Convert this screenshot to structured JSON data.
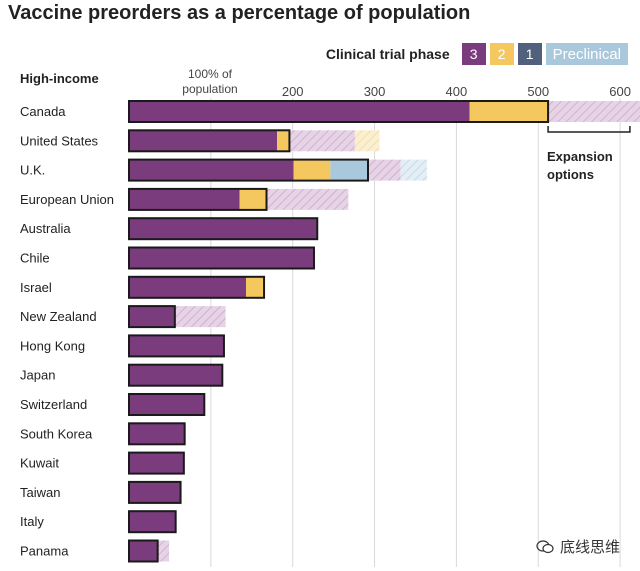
{
  "chart_data": {
    "type": "bar",
    "title": "Vaccine preorders as a percentage of population",
    "group_label": "High-income",
    "reference_label": "100% of population",
    "legend": {
      "title": "Clinical trial phase",
      "items": [
        {
          "label": "3",
          "color": "#7b3c7e"
        },
        {
          "label": "2",
          "color": "#f4c85e"
        },
        {
          "label": "1",
          "color": "#51607d"
        },
        {
          "label": "Preclinical",
          "color": "#a9c8dc"
        }
      ]
    },
    "x_ticks": [
      "200",
      "300",
      "400",
      "500",
      "600"
    ],
    "xlim": [
      0,
      610
    ],
    "gridlines": [
      100,
      200,
      300,
      400,
      500,
      600
    ],
    "expansion_label": [
      "Expansion",
      "options"
    ],
    "categories": [
      "Canada",
      "United States",
      "U.K.",
      "European Union",
      "Australia",
      "Chile",
      "Israel",
      "New Zealand",
      "Hong Kong",
      "Japan",
      "Switzerland",
      "South Korea",
      "Kuwait",
      "Taiwan",
      "Italy",
      "Panama"
    ],
    "series": [
      {
        "name": "3",
        "values": [
          416,
          181,
          201,
          135,
          230,
          226,
          143,
          56,
          116,
          114,
          92,
          68,
          67,
          63,
          57,
          35
        ]
      },
      {
        "name": "2",
        "values": [
          96,
          15,
          45,
          33,
          0,
          0,
          22,
          0,
          0,
          0,
          0,
          0,
          0,
          0,
          0,
          0
        ]
      },
      {
        "name": "1",
        "values": [
          0,
          0,
          0,
          0,
          0,
          0,
          0,
          0,
          0,
          0,
          0,
          0,
          0,
          0,
          0,
          0
        ]
      },
      {
        "name": "Preclinical",
        "values": [
          0,
          0,
          46,
          0,
          0,
          0,
          0,
          0,
          0,
          0,
          0,
          0,
          0,
          0,
          0,
          0
        ]
      }
    ],
    "expansion_options": [
      120,
      110,
      72,
      100,
      0,
      0,
      0,
      62,
      0,
      0,
      0,
      0,
      0,
      0,
      0,
      14
    ],
    "colors": {
      "phase3": "#7b3c7e",
      "phase2": "#f4c85e",
      "phase1": "#51607d",
      "preclinical": "#a9c8dc",
      "outline": "#1a1a1a",
      "grid": "#d9d9d9"
    }
  },
  "watermark": "底线思维"
}
